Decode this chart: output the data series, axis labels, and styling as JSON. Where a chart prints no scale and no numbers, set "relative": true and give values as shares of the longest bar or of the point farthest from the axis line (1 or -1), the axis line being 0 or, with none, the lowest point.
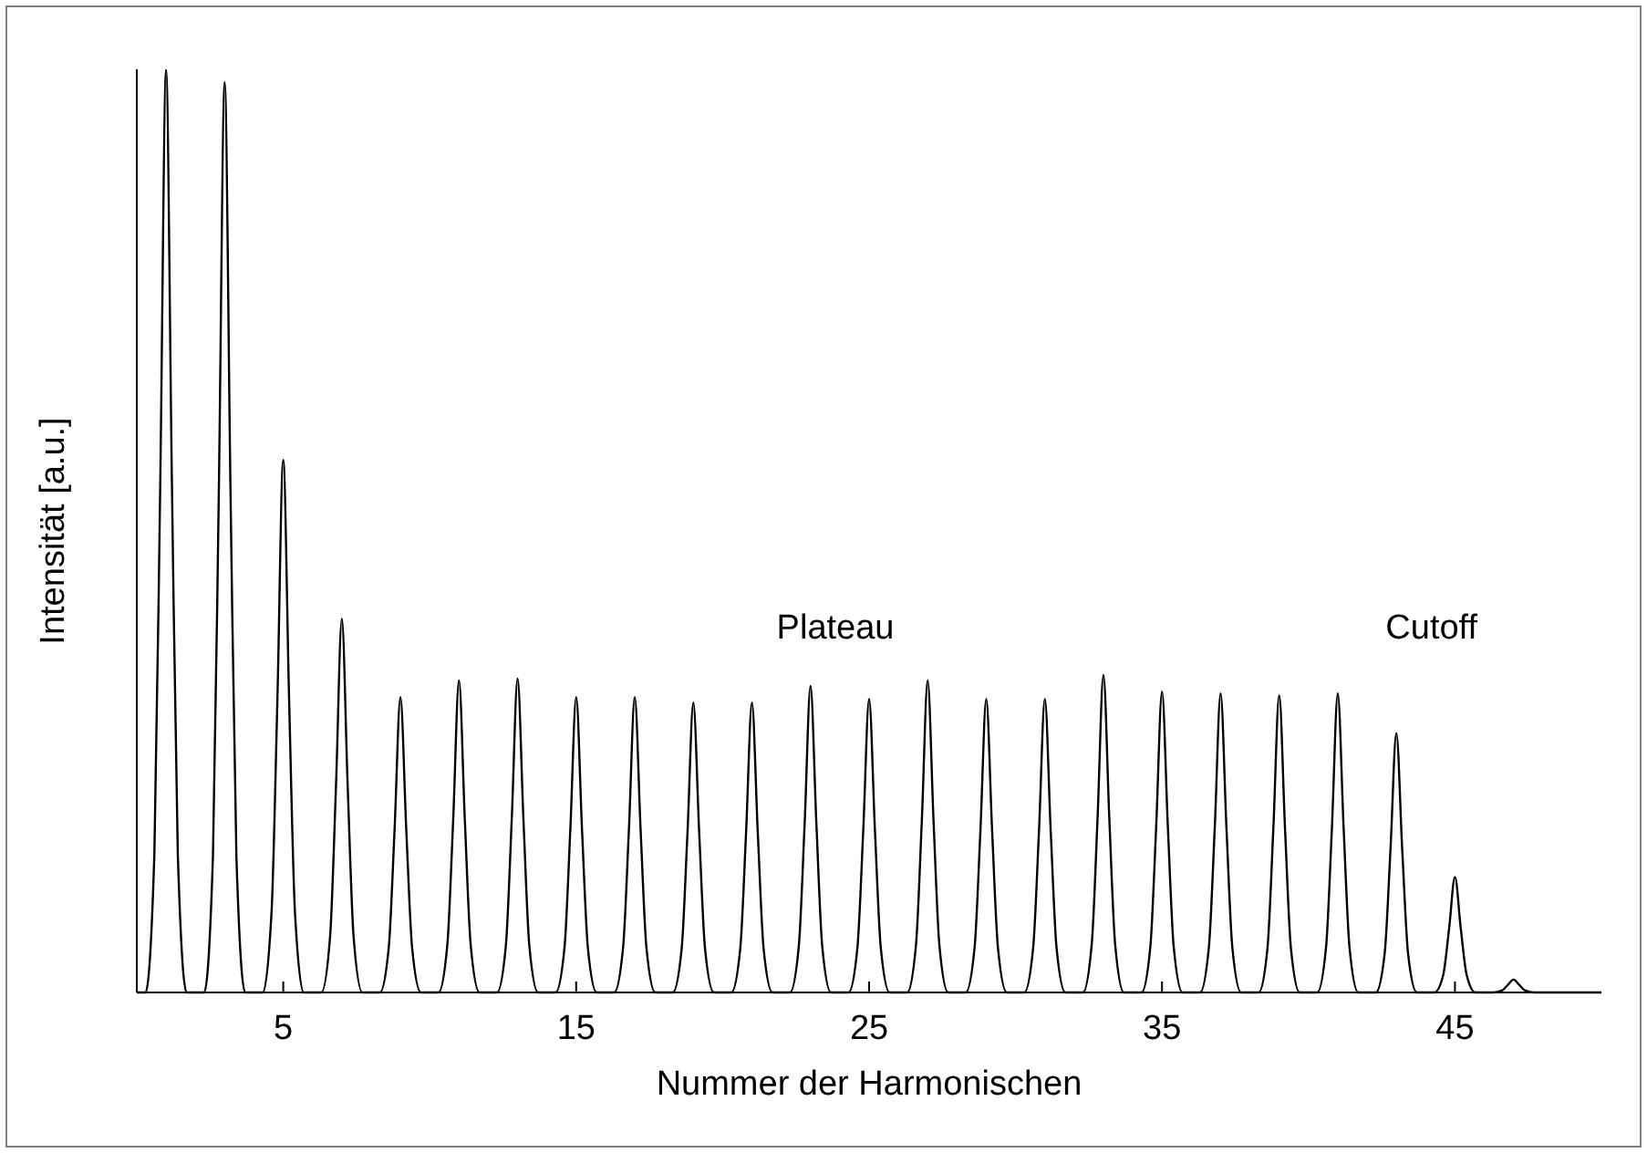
{
  "chart_data": {
    "type": "line",
    "relative": true,
    "xlabel": "Nummer der Harmonischen",
    "ylabel": "Intensität [a.u.]",
    "annotations": [
      "Plateau",
      "Cutoff"
    ],
    "xlim": [
      0,
      50
    ],
    "xticks": [
      5,
      15,
      25,
      35,
      45
    ],
    "grid": false,
    "marker": "none",
    "line_style": "solid",
    "series": [
      {
        "color": "#000000",
        "x": [
          0,
          0.3,
          0.6,
          0.8,
          1,
          1.2,
          1.4,
          1.7,
          2.3,
          2.6,
          2.8,
          3,
          3.2,
          3.4,
          3.7,
          4.3,
          4.6,
          4.8,
          5,
          5.2,
          5.4,
          5.7,
          6.3,
          6.6,
          6.8,
          7,
          7.2,
          7.4,
          7.7,
          8.3,
          8.6,
          8.8,
          9,
          9.2,
          9.4,
          9.7,
          10.3,
          10.6,
          10.8,
          11,
          11.2,
          11.4,
          11.7,
          12.3,
          12.6,
          12.8,
          13,
          13.2,
          13.4,
          13.7,
          14.3,
          14.6,
          14.8,
          15,
          15.2,
          15.4,
          15.7,
          16.3,
          16.6,
          16.8,
          17,
          17.2,
          17.4,
          17.7,
          18.3,
          18.6,
          18.8,
          19,
          19.2,
          19.4,
          19.7,
          20.3,
          20.6,
          20.8,
          21,
          21.2,
          21.4,
          21.7,
          22.3,
          22.6,
          22.8,
          23,
          23.2,
          23.4,
          23.7,
          24.3,
          24.6,
          24.8,
          25,
          25.2,
          25.4,
          25.7,
          26.3,
          26.6,
          26.8,
          27,
          27.2,
          27.4,
          27.7,
          28.3,
          28.6,
          28.8,
          29,
          29.2,
          29.4,
          29.7,
          30.3,
          30.6,
          30.8,
          31,
          31.2,
          31.4,
          31.7,
          32.3,
          32.6,
          32.8,
          33,
          33.2,
          33.4,
          33.7,
          34.3,
          34.6,
          34.8,
          35,
          35.2,
          35.4,
          35.7,
          36.3,
          36.6,
          36.8,
          37,
          37.2,
          37.4,
          37.7,
          38.3,
          38.6,
          38.8,
          39,
          39.2,
          39.4,
          39.7,
          40.3,
          40.6,
          40.8,
          41,
          41.2,
          41.4,
          41.7,
          42.3,
          42.6,
          42.8,
          43,
          43.2,
          43.4,
          43.7,
          44.3,
          44.6,
          44.8,
          45,
          45.2,
          45.4,
          45.7,
          46.3,
          46.6,
          46.8,
          47,
          47.2,
          47.4,
          47.7,
          50
        ],
        "values": [
          0,
          0,
          0.15,
          0.55,
          1,
          0.55,
          0.15,
          0,
          0,
          0.148,
          0.542,
          0.986,
          0.542,
          0.148,
          0,
          0,
          0.087,
          0.317,
          0.577,
          0.317,
          0.087,
          0,
          0,
          0.061,
          0.223,
          0.405,
          0.223,
          0.061,
          0,
          0,
          0.048,
          0.176,
          0.32,
          0.176,
          0.048,
          0,
          0,
          0.051,
          0.186,
          0.338,
          0.186,
          0.051,
          0,
          0,
          0.051,
          0.187,
          0.34,
          0.187,
          0.051,
          0,
          0,
          0.048,
          0.176,
          0.32,
          0.176,
          0.048,
          0,
          0,
          0.048,
          0.176,
          0.32,
          0.176,
          0.048,
          0,
          0,
          0.047,
          0.173,
          0.314,
          0.173,
          0.047,
          0,
          0,
          0.047,
          0.173,
          0.314,
          0.173,
          0.047,
          0,
          0,
          0.05,
          0.183,
          0.332,
          0.183,
          0.05,
          0,
          0,
          0.048,
          0.175,
          0.318,
          0.175,
          0.048,
          0,
          0,
          0.051,
          0.186,
          0.338,
          0.186,
          0.051,
          0,
          0,
          0.048,
          0.175,
          0.318,
          0.175,
          0.048,
          0,
          0,
          0.048,
          0.175,
          0.318,
          0.175,
          0.048,
          0,
          0,
          0.052,
          0.189,
          0.344,
          0.189,
          0.052,
          0,
          0,
          0.049,
          0.179,
          0.326,
          0.179,
          0.049,
          0,
          0,
          0.049,
          0.178,
          0.324,
          0.178,
          0.049,
          0,
          0,
          0.048,
          0.177,
          0.322,
          0.177,
          0.048,
          0,
          0,
          0.049,
          0.178,
          0.324,
          0.178,
          0.049,
          0,
          0,
          0.042,
          0.155,
          0.281,
          0.155,
          0.042,
          0,
          0,
          0.019,
          0.069,
          0.125,
          0.069,
          0.019,
          0,
          0,
          0.002,
          0.008,
          0.014,
          0.008,
          0.002,
          0,
          0
        ]
      }
    ]
  }
}
